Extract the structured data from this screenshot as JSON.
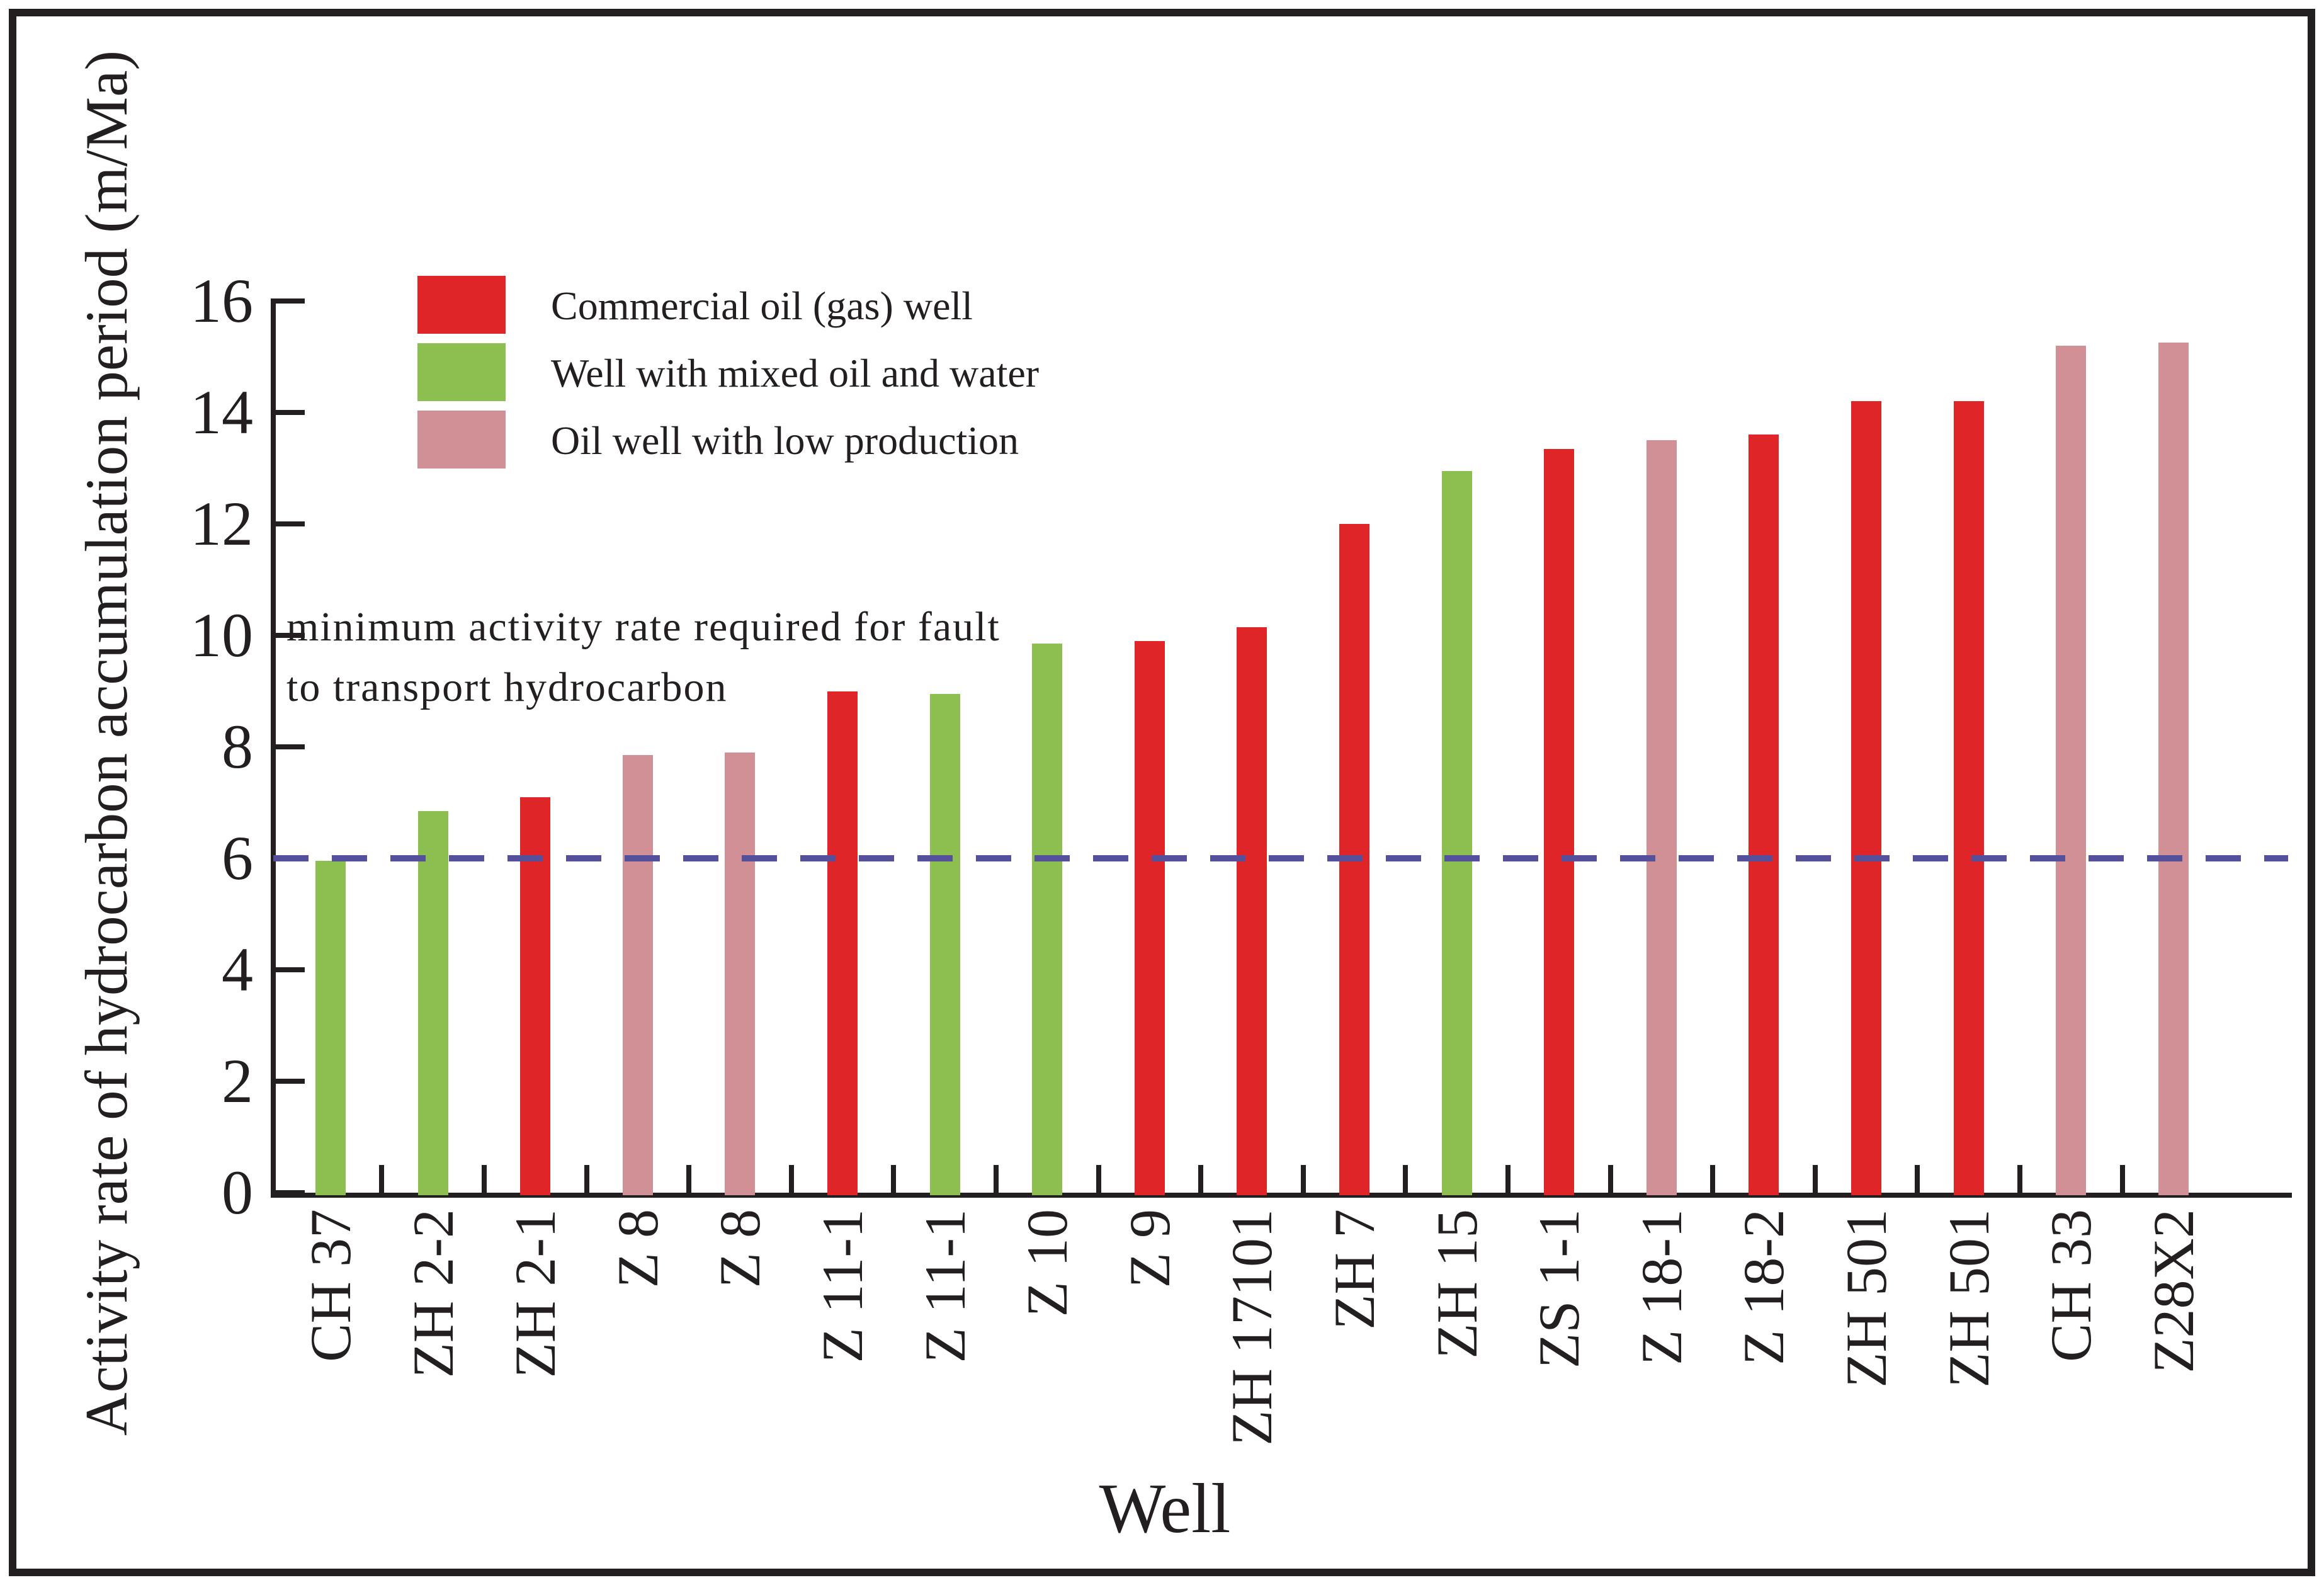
{
  "chart_data": {
    "type": "bar",
    "title": "",
    "xlabel": "Well",
    "ylabel": "Activity rate of hydrocarbon accumulation period (m/Ma)",
    "ylim": [
      0,
      16
    ],
    "yticks": [
      0,
      2,
      4,
      6,
      8,
      10,
      12,
      14,
      16
    ],
    "grid": false,
    "legend_position": "top-left-inside",
    "categories": [
      "CH 37",
      "ZH 2-2",
      "ZH 2-1",
      "Z 8",
      "Z 8",
      "Z 11-1",
      "Z 11-1",
      "Z 10",
      "Z 9",
      "ZH 17101",
      "ZH 7",
      "ZH 15",
      "ZS 1-1",
      "Z 18-1",
      "Z 18-2",
      "ZH 501",
      "ZH 501",
      "CH 33",
      "Z28X2"
    ],
    "values": [
      5.95,
      6.85,
      7.1,
      7.85,
      7.9,
      9.0,
      8.95,
      9.85,
      9.9,
      10.15,
      12.0,
      12.95,
      13.35,
      13.5,
      13.6,
      14.2,
      14.2,
      15.2,
      15.25
    ],
    "bar_types": [
      "mixed",
      "mixed",
      "commercial",
      "low",
      "low",
      "commercial",
      "mixed",
      "mixed",
      "commercial",
      "commercial",
      "commercial",
      "mixed",
      "commercial",
      "low",
      "commercial",
      "commercial",
      "commercial",
      "low",
      "low"
    ],
    "legend": [
      {
        "key": "commercial",
        "label": "Commercial oil (gas) well",
        "color": "#e02528"
      },
      {
        "key": "mixed",
        "label": "Well with mixed oil and water",
        "color": "#8cbe50"
      },
      {
        "key": "low",
        "label": "Oil well with low production",
        "color": "#d18f96"
      }
    ],
    "reference_line": {
      "value": 6,
      "color": "#55509c",
      "style": "dashed"
    }
  },
  "annotation": {
    "line1": "minimum activity rate required for fault",
    "line2": "to transport hydrocarbon"
  },
  "colors": {
    "ink": "#231f20",
    "background": "#ffffff"
  }
}
